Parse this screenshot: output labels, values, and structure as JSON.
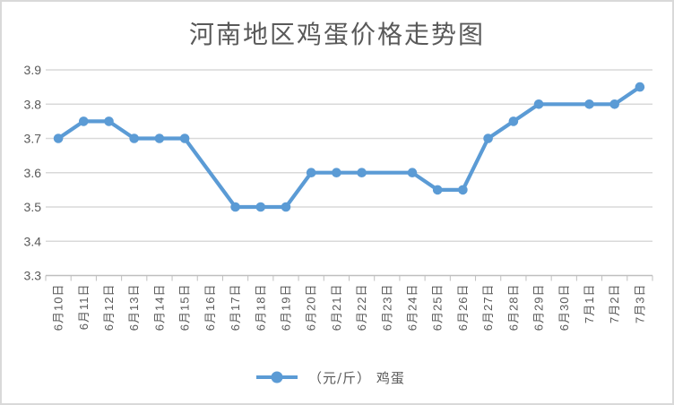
{
  "window": {
    "background": "#ffffff",
    "border_color": "#d9d9d9"
  },
  "chart_data": {
    "type": "line",
    "title": "河南地区鸡蛋价格走势图",
    "xlabel": "",
    "ylabel": "",
    "categories": [
      "6月10日",
      "6月11日",
      "6月12日",
      "6月13日",
      "6月14日",
      "6月15日",
      "6月16日",
      "6月17日",
      "6月18日",
      "6月19日",
      "6月20日",
      "6月21日",
      "6月22日",
      "6月23日",
      "6月24日",
      "6月25日",
      "6月26日",
      "6月27日",
      "6月28日",
      "6月29日",
      "6月30日",
      "7月1日",
      "7月2日",
      "7月3日"
    ],
    "series": [
      {
        "name": "（元/斤） 鸡蛋",
        "color": "#5b9bd5",
        "values": [
          3.7,
          3.75,
          3.75,
          3.7,
          3.7,
          3.7,
          null,
          3.5,
          3.5,
          3.5,
          3.6,
          3.6,
          3.6,
          null,
          3.6,
          3.55,
          3.55,
          3.7,
          3.75,
          3.8,
          null,
          3.8,
          3.8,
          3.85
        ]
      }
    ],
    "ylim": [
      3.3,
      3.9
    ],
    "y_ticks": [
      "3.3",
      "3.4",
      "3.5",
      "3.6",
      "3.7",
      "3.8",
      "3.9"
    ],
    "grid": true,
    "gap_policy": "connect-across-missing",
    "legend_position": "bottom",
    "marker": "circle",
    "colors": {
      "gridline": "#d9d9d9",
      "axis": "#bfbfbf",
      "tick": "#bfbfbf",
      "text": "#595959",
      "title_text": "#595959"
    }
  }
}
